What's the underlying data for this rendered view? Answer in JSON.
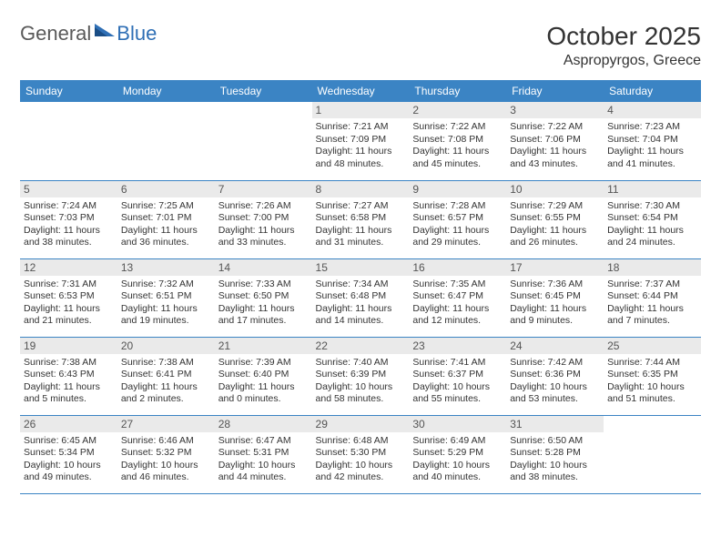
{
  "logo": {
    "general": "General",
    "blue": "Blue"
  },
  "title": "October 2025",
  "location": "Aspropyrgos, Greece",
  "columns": [
    "Sunday",
    "Monday",
    "Tuesday",
    "Wednesday",
    "Thursday",
    "Friday",
    "Saturday"
  ],
  "colors": {
    "header_bg": "#3b84c4",
    "header_text": "#ffffff",
    "daynum_bg": "#eaeaea",
    "border": "#3b84c4",
    "logo_gray": "#5a5a5a",
    "logo_blue": "#2f6fb5"
  },
  "weeks": [
    [
      {
        "num": "",
        "sunrise": "",
        "sunset": "",
        "daylight": ""
      },
      {
        "num": "",
        "sunrise": "",
        "sunset": "",
        "daylight": ""
      },
      {
        "num": "",
        "sunrise": "",
        "sunset": "",
        "daylight": ""
      },
      {
        "num": "1",
        "sunrise": "Sunrise: 7:21 AM",
        "sunset": "Sunset: 7:09 PM",
        "daylight": "Daylight: 11 hours and 48 minutes."
      },
      {
        "num": "2",
        "sunrise": "Sunrise: 7:22 AM",
        "sunset": "Sunset: 7:08 PM",
        "daylight": "Daylight: 11 hours and 45 minutes."
      },
      {
        "num": "3",
        "sunrise": "Sunrise: 7:22 AM",
        "sunset": "Sunset: 7:06 PM",
        "daylight": "Daylight: 11 hours and 43 minutes."
      },
      {
        "num": "4",
        "sunrise": "Sunrise: 7:23 AM",
        "sunset": "Sunset: 7:04 PM",
        "daylight": "Daylight: 11 hours and 41 minutes."
      }
    ],
    [
      {
        "num": "5",
        "sunrise": "Sunrise: 7:24 AM",
        "sunset": "Sunset: 7:03 PM",
        "daylight": "Daylight: 11 hours and 38 minutes."
      },
      {
        "num": "6",
        "sunrise": "Sunrise: 7:25 AM",
        "sunset": "Sunset: 7:01 PM",
        "daylight": "Daylight: 11 hours and 36 minutes."
      },
      {
        "num": "7",
        "sunrise": "Sunrise: 7:26 AM",
        "sunset": "Sunset: 7:00 PM",
        "daylight": "Daylight: 11 hours and 33 minutes."
      },
      {
        "num": "8",
        "sunrise": "Sunrise: 7:27 AM",
        "sunset": "Sunset: 6:58 PM",
        "daylight": "Daylight: 11 hours and 31 minutes."
      },
      {
        "num": "9",
        "sunrise": "Sunrise: 7:28 AM",
        "sunset": "Sunset: 6:57 PM",
        "daylight": "Daylight: 11 hours and 29 minutes."
      },
      {
        "num": "10",
        "sunrise": "Sunrise: 7:29 AM",
        "sunset": "Sunset: 6:55 PM",
        "daylight": "Daylight: 11 hours and 26 minutes."
      },
      {
        "num": "11",
        "sunrise": "Sunrise: 7:30 AM",
        "sunset": "Sunset: 6:54 PM",
        "daylight": "Daylight: 11 hours and 24 minutes."
      }
    ],
    [
      {
        "num": "12",
        "sunrise": "Sunrise: 7:31 AM",
        "sunset": "Sunset: 6:53 PM",
        "daylight": "Daylight: 11 hours and 21 minutes."
      },
      {
        "num": "13",
        "sunrise": "Sunrise: 7:32 AM",
        "sunset": "Sunset: 6:51 PM",
        "daylight": "Daylight: 11 hours and 19 minutes."
      },
      {
        "num": "14",
        "sunrise": "Sunrise: 7:33 AM",
        "sunset": "Sunset: 6:50 PM",
        "daylight": "Daylight: 11 hours and 17 minutes."
      },
      {
        "num": "15",
        "sunrise": "Sunrise: 7:34 AM",
        "sunset": "Sunset: 6:48 PM",
        "daylight": "Daylight: 11 hours and 14 minutes."
      },
      {
        "num": "16",
        "sunrise": "Sunrise: 7:35 AM",
        "sunset": "Sunset: 6:47 PM",
        "daylight": "Daylight: 11 hours and 12 minutes."
      },
      {
        "num": "17",
        "sunrise": "Sunrise: 7:36 AM",
        "sunset": "Sunset: 6:45 PM",
        "daylight": "Daylight: 11 hours and 9 minutes."
      },
      {
        "num": "18",
        "sunrise": "Sunrise: 7:37 AM",
        "sunset": "Sunset: 6:44 PM",
        "daylight": "Daylight: 11 hours and 7 minutes."
      }
    ],
    [
      {
        "num": "19",
        "sunrise": "Sunrise: 7:38 AM",
        "sunset": "Sunset: 6:43 PM",
        "daylight": "Daylight: 11 hours and 5 minutes."
      },
      {
        "num": "20",
        "sunrise": "Sunrise: 7:38 AM",
        "sunset": "Sunset: 6:41 PM",
        "daylight": "Daylight: 11 hours and 2 minutes."
      },
      {
        "num": "21",
        "sunrise": "Sunrise: 7:39 AM",
        "sunset": "Sunset: 6:40 PM",
        "daylight": "Daylight: 11 hours and 0 minutes."
      },
      {
        "num": "22",
        "sunrise": "Sunrise: 7:40 AM",
        "sunset": "Sunset: 6:39 PM",
        "daylight": "Daylight: 10 hours and 58 minutes."
      },
      {
        "num": "23",
        "sunrise": "Sunrise: 7:41 AM",
        "sunset": "Sunset: 6:37 PM",
        "daylight": "Daylight: 10 hours and 55 minutes."
      },
      {
        "num": "24",
        "sunrise": "Sunrise: 7:42 AM",
        "sunset": "Sunset: 6:36 PM",
        "daylight": "Daylight: 10 hours and 53 minutes."
      },
      {
        "num": "25",
        "sunrise": "Sunrise: 7:44 AM",
        "sunset": "Sunset: 6:35 PM",
        "daylight": "Daylight: 10 hours and 51 minutes."
      }
    ],
    [
      {
        "num": "26",
        "sunrise": "Sunrise: 6:45 AM",
        "sunset": "Sunset: 5:34 PM",
        "daylight": "Daylight: 10 hours and 49 minutes."
      },
      {
        "num": "27",
        "sunrise": "Sunrise: 6:46 AM",
        "sunset": "Sunset: 5:32 PM",
        "daylight": "Daylight: 10 hours and 46 minutes."
      },
      {
        "num": "28",
        "sunrise": "Sunrise: 6:47 AM",
        "sunset": "Sunset: 5:31 PM",
        "daylight": "Daylight: 10 hours and 44 minutes."
      },
      {
        "num": "29",
        "sunrise": "Sunrise: 6:48 AM",
        "sunset": "Sunset: 5:30 PM",
        "daylight": "Daylight: 10 hours and 42 minutes."
      },
      {
        "num": "30",
        "sunrise": "Sunrise: 6:49 AM",
        "sunset": "Sunset: 5:29 PM",
        "daylight": "Daylight: 10 hours and 40 minutes."
      },
      {
        "num": "31",
        "sunrise": "Sunrise: 6:50 AM",
        "sunset": "Sunset: 5:28 PM",
        "daylight": "Daylight: 10 hours and 38 minutes."
      },
      {
        "num": "",
        "sunrise": "",
        "sunset": "",
        "daylight": ""
      }
    ]
  ]
}
